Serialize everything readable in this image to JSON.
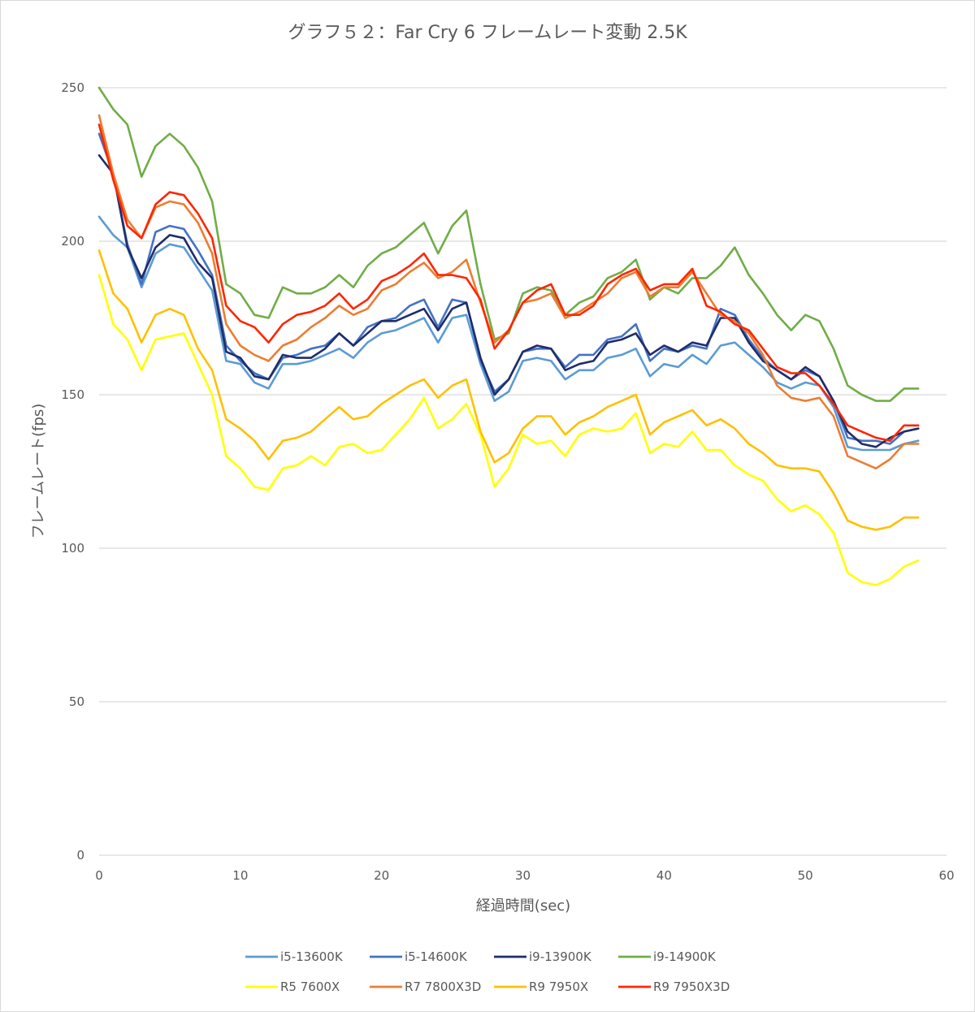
{
  "chart_data": {
    "type": "line",
    "title": "グラフ５２：Far Cry 6 フレームレート変動 2.5K",
    "xlabel": "経過時間(sec)",
    "ylabel": "フレームレート(fps)",
    "xlim": [
      0,
      60
    ],
    "ylim": [
      0,
      250
    ],
    "xticks": [
      0,
      10,
      20,
      30,
      40,
      50,
      60
    ],
    "yticks": [
      0,
      50,
      100,
      150,
      200,
      250
    ],
    "grid": "horizontal",
    "legend_position": "bottom",
    "x": [
      0,
      1,
      2,
      3,
      4,
      5,
      6,
      7,
      8,
      9,
      10,
      11,
      12,
      13,
      14,
      15,
      16,
      17,
      18,
      19,
      20,
      21,
      22,
      23,
      24,
      25,
      26,
      27,
      28,
      29,
      30,
      31,
      32,
      33,
      34,
      35,
      36,
      37,
      38,
      39,
      40,
      41,
      42,
      43,
      44,
      45,
      46,
      47,
      48,
      49,
      50,
      51,
      52,
      53,
      54,
      55,
      56,
      57,
      58
    ],
    "series": [
      {
        "name": "i5-13600K",
        "color": "#5b9bd5",
        "values": [
          208,
          202,
          198,
          185,
          196,
          199,
          198,
          191,
          184,
          161,
          160,
          154,
          152,
          160,
          160,
          161,
          163,
          165,
          162,
          167,
          170,
          171,
          173,
          175,
          167,
          175,
          176,
          160,
          148,
          151,
          161,
          162,
          161,
          155,
          158,
          158,
          162,
          163,
          165,
          156,
          160,
          159,
          163,
          160,
          166,
          167,
          163,
          159,
          154,
          152,
          154,
          153,
          146,
          133,
          132,
          132,
          132,
          134,
          135
        ]
      },
      {
        "name": "i5-14600K",
        "color": "#4472c4",
        "values": [
          235,
          222,
          199,
          186,
          203,
          205,
          204,
          197,
          189,
          166,
          161,
          157,
          155,
          162,
          163,
          165,
          166,
          170,
          166,
          172,
          174,
          175,
          179,
          181,
          172,
          181,
          180,
          161,
          151,
          155,
          164,
          165,
          165,
          159,
          163,
          163,
          168,
          169,
          173,
          161,
          165,
          164,
          166,
          165,
          178,
          176,
          168,
          162,
          158,
          155,
          158,
          156,
          148,
          136,
          135,
          135,
          134,
          138,
          139
        ]
      },
      {
        "name": "i9-13900K",
        "color": "#1f2d6b",
        "values": [
          228,
          222,
          198,
          188,
          198,
          202,
          201,
          193,
          188,
          164,
          162,
          156,
          155,
          163,
          162,
          162,
          165,
          170,
          166,
          170,
          174,
          174,
          176,
          178,
          171,
          178,
          180,
          162,
          150,
          155,
          164,
          166,
          165,
          158,
          160,
          161,
          167,
          168,
          170,
          163,
          166,
          164,
          167,
          166,
          175,
          175,
          167,
          161,
          158,
          155,
          159,
          156,
          148,
          138,
          134,
          133,
          136,
          138,
          139
        ]
      },
      {
        "name": "i9-14900K",
        "color": "#70ad47",
        "values": [
          250,
          243,
          238,
          221,
          231,
          235,
          231,
          224,
          213,
          186,
          183,
          176,
          175,
          185,
          183,
          183,
          185,
          189,
          185,
          192,
          196,
          198,
          202,
          206,
          196,
          205,
          210,
          186,
          168,
          170,
          183,
          185,
          184,
          176,
          180,
          182,
          188,
          190,
          194,
          181,
          185,
          183,
          188,
          188,
          192,
          198,
          189,
          183,
          176,
          171,
          176,
          174,
          165,
          153,
          150,
          148,
          148,
          152,
          152
        ]
      },
      {
        "name": "R5 7600X",
        "color": "#ffff00",
        "values": [
          189,
          173,
          168,
          158,
          168,
          169,
          170,
          160,
          150,
          130,
          126,
          120,
          119,
          126,
          127,
          130,
          127,
          133,
          134,
          131,
          132,
          137,
          142,
          149,
          139,
          142,
          147,
          137,
          120,
          126,
          137,
          134,
          135,
          130,
          137,
          139,
          138,
          139,
          144,
          131,
          134,
          133,
          138,
          132,
          132,
          127,
          124,
          122,
          116,
          112,
          114,
          111,
          105,
          92,
          89,
          88,
          90,
          94,
          96
        ]
      },
      {
        "name": "R7 7800X3D",
        "color": "#ed7d31",
        "values": [
          241,
          222,
          207,
          201,
          211,
          213,
          212,
          206,
          196,
          173,
          166,
          163,
          161,
          166,
          168,
          172,
          175,
          179,
          176,
          178,
          184,
          186,
          190,
          193,
          188,
          190,
          194,
          180,
          167,
          171,
          180,
          181,
          183,
          175,
          177,
          180,
          183,
          188,
          190,
          182,
          185,
          185,
          190,
          183,
          176,
          174,
          170,
          163,
          153,
          149,
          148,
          149,
          143,
          130,
          128,
          126,
          129,
          134,
          134
        ]
      },
      {
        "name": "R9 7950X",
        "color": "#ffc000",
        "values": [
          197,
          183,
          178,
          167,
          176,
          178,
          176,
          165,
          158,
          142,
          139,
          135,
          129,
          135,
          136,
          138,
          142,
          146,
          142,
          143,
          147,
          150,
          153,
          155,
          149,
          153,
          155,
          138,
          128,
          131,
          139,
          143,
          143,
          137,
          141,
          143,
          146,
          148,
          150,
          137,
          141,
          143,
          145,
          140,
          142,
          139,
          134,
          131,
          127,
          126,
          126,
          125,
          118,
          109,
          107,
          106,
          107,
          110,
          110
        ]
      },
      {
        "name": "R9 7950X3D",
        "color": "#ff2600",
        "values": [
          238,
          220,
          205,
          201,
          212,
          216,
          215,
          209,
          201,
          179,
          174,
          172,
          167,
          173,
          176,
          177,
          179,
          183,
          178,
          181,
          187,
          189,
          192,
          196,
          189,
          189,
          188,
          181,
          165,
          171,
          180,
          184,
          186,
          176,
          176,
          179,
          186,
          189,
          191,
          184,
          186,
          186,
          191,
          179,
          177,
          173,
          171,
          165,
          159,
          157,
          157,
          153,
          147,
          140,
          138,
          136,
          135,
          140,
          140
        ]
      }
    ]
  }
}
